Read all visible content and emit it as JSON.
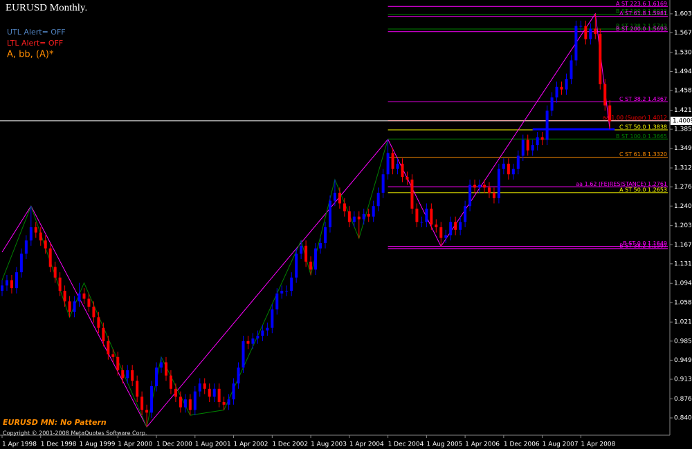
{
  "chart_data": {
    "type": "candlestick",
    "title": "EURUSD Monthly.",
    "notes": [
      {
        "text": "UTL Alert= OFF",
        "color": "#4f81bd"
      },
      {
        "text": "LTL Alert= OFF",
        "color": "#ff2020"
      },
      {
        "text": "A, bb, (A)*",
        "color": "#ff8c00"
      }
    ],
    "status": "EURUSD MN: No Pattern",
    "copyright": "Copyright © 2001-2008 MetaQuotes Software Corp.",
    "up_color": "#0000ff",
    "down_color": "#ff0000",
    "ylim": [
      0.81,
      1.629
    ],
    "yticks": [
      {
        "value": 1.603,
        "label": "1.6030"
      },
      {
        "value": 1.567,
        "label": "1.5670"
      },
      {
        "value": 1.53,
        "label": "1.5300"
      },
      {
        "value": 1.494,
        "label": "1.4940"
      },
      {
        "value": 1.458,
        "label": "1.4580"
      },
      {
        "value": 1.421,
        "label": "1.4210"
      },
      {
        "value": 1.385,
        "label": "1.3850"
      },
      {
        "value": 1.349,
        "label": "1.3490"
      },
      {
        "value": 1.312,
        "label": "1.3120"
      },
      {
        "value": 1.276,
        "label": "1.2760"
      },
      {
        "value": 1.24,
        "label": "1.2400"
      },
      {
        "value": 1.203,
        "label": "1.2030"
      },
      {
        "value": 1.167,
        "label": "1.1670"
      },
      {
        "value": 1.131,
        "label": "1.1310"
      },
      {
        "value": 1.094,
        "label": "1.0940"
      },
      {
        "value": 1.058,
        "label": "1.0580"
      },
      {
        "value": 1.021,
        "label": "1.0210"
      },
      {
        "value": 0.985,
        "label": "0.9850"
      },
      {
        "value": 0.949,
        "label": "0.9490"
      },
      {
        "value": 0.913,
        "label": "0.9130"
      },
      {
        "value": 0.876,
        "label": "0.8760"
      },
      {
        "value": 0.84,
        "label": "0.8400"
      }
    ],
    "categories": [
      "1 Apr 1998",
      null,
      null,
      null,
      null,
      null,
      null,
      null,
      "1 Dec 1998",
      null,
      null,
      null,
      null,
      null,
      null,
      null,
      "1 Aug 1999",
      null,
      null,
      null,
      null,
      null,
      null,
      null,
      "1 Apr 2000",
      null,
      null,
      null,
      null,
      null,
      null,
      null,
      "1 Dec 2000",
      null,
      null,
      null,
      null,
      null,
      null,
      null,
      "1 Aug 2001",
      null,
      null,
      null,
      null,
      null,
      null,
      null,
      "1 Apr 2002",
      null,
      null,
      null,
      null,
      null,
      null,
      null,
      "1 Dec 2002",
      null,
      null,
      null,
      null,
      null,
      null,
      null,
      "1 Aug 2003",
      null,
      null,
      null,
      null,
      null,
      null,
      null,
      "1 Apr 2004",
      null,
      null,
      null,
      null,
      null,
      null,
      null,
      "1 Dec 2004",
      null,
      null,
      null,
      null,
      null,
      null,
      null,
      "1 Aug 2005",
      null,
      null,
      null,
      null,
      null,
      null,
      null,
      "1 Apr 2006",
      null,
      null,
      null,
      null,
      null,
      null,
      null,
      "1 Dec 2006",
      null,
      null,
      null,
      null,
      null,
      null,
      null,
      "1 Aug 2007",
      null,
      null,
      null,
      null,
      null,
      null,
      null,
      "1 Apr 2008",
      null,
      null,
      null,
      null,
      null,
      null
    ],
    "open": [
      1.08,
      1.09,
      1.1,
      1.085,
      1.115,
      1.15,
      1.175,
      1.2,
      1.19,
      1.175,
      1.16,
      1.125,
      1.105,
      1.08,
      1.06,
      1.04,
      1.06,
      1.075,
      1.065,
      1.05,
      1.03,
      1.01,
      0.985,
      0.96,
      0.955,
      0.93,
      0.915,
      0.93,
      0.91,
      0.88,
      0.855,
      0.85,
      0.9,
      0.935,
      0.945,
      0.92,
      0.895,
      0.88,
      0.86,
      0.875,
      0.855,
      0.89,
      0.905,
      0.895,
      0.88,
      0.895,
      0.87,
      0.865,
      0.875,
      0.905,
      0.935,
      0.985,
      0.98,
      0.99,
      0.995,
      1.005,
      1.01,
      1.045,
      1.075,
      1.08,
      1.08,
      1.105,
      1.15,
      1.165,
      1.135,
      1.12,
      1.16,
      1.17,
      1.2,
      1.25,
      1.265,
      1.245,
      1.23,
      1.21,
      1.22,
      1.215,
      1.225,
      1.22,
      1.24,
      1.265,
      1.3,
      1.34,
      1.31,
      1.32,
      1.295,
      1.29,
      1.235,
      1.21,
      1.21,
      1.235,
      1.205,
      1.2,
      1.18,
      1.185,
      1.21,
      1.195,
      1.21,
      1.24,
      1.28,
      1.275,
      1.28,
      1.275,
      1.265,
      1.255,
      1.31,
      1.32,
      1.3,
      1.31,
      1.335,
      1.365,
      1.345,
      1.355,
      1.37,
      1.365,
      1.42,
      1.445,
      1.465,
      1.46,
      1.48,
      1.515,
      1.58,
      1.58,
      1.555,
      1.575,
      1.565,
      1.47,
      1.43
    ],
    "high": [
      1.1,
      1.11,
      1.11,
      1.125,
      1.16,
      1.185,
      1.24,
      1.21,
      1.2,
      1.185,
      1.17,
      1.135,
      1.115,
      1.09,
      1.07,
      1.07,
      1.095,
      1.085,
      1.075,
      1.06,
      1.04,
      1.02,
      0.995,
      0.97,
      0.965,
      0.94,
      0.94,
      0.94,
      0.92,
      0.89,
      0.865,
      0.91,
      0.945,
      0.955,
      0.955,
      0.93,
      0.905,
      0.89,
      0.885,
      0.885,
      0.9,
      0.915,
      0.915,
      0.905,
      0.905,
      0.905,
      0.88,
      0.885,
      0.915,
      0.945,
      0.995,
      0.995,
      1.0,
      1.005,
      1.015,
      1.02,
      1.055,
      1.085,
      1.09,
      1.09,
      1.115,
      1.16,
      1.175,
      1.175,
      1.145,
      1.17,
      1.18,
      1.21,
      1.26,
      1.29,
      1.275,
      1.255,
      1.24,
      1.23,
      1.23,
      1.235,
      1.235,
      1.25,
      1.275,
      1.31,
      1.366,
      1.35,
      1.33,
      1.33,
      1.305,
      1.3,
      1.245,
      1.22,
      1.245,
      1.245,
      1.215,
      1.21,
      1.195,
      1.22,
      1.22,
      1.22,
      1.25,
      1.29,
      1.29,
      1.29,
      1.29,
      1.285,
      1.275,
      1.32,
      1.33,
      1.33,
      1.32,
      1.345,
      1.375,
      1.375,
      1.365,
      1.38,
      1.38,
      1.43,
      1.455,
      1.475,
      1.475,
      1.49,
      1.525,
      1.59,
      1.59,
      1.59,
      1.585,
      1.603,
      1.575,
      1.48,
      1.44
    ],
    "low": [
      1.07,
      1.08,
      1.075,
      1.075,
      1.105,
      1.14,
      1.165,
      1.18,
      1.165,
      1.15,
      1.115,
      1.095,
      1.07,
      1.05,
      1.03,
      1.03,
      1.05,
      1.055,
      1.04,
      1.02,
      1.0,
      0.975,
      0.95,
      0.945,
      0.92,
      0.905,
      0.905,
      0.9,
      0.87,
      0.845,
      0.823,
      0.84,
      0.89,
      0.925,
      0.91,
      0.885,
      0.87,
      0.85,
      0.85,
      0.845,
      0.845,
      0.88,
      0.885,
      0.87,
      0.87,
      0.86,
      0.855,
      0.855,
      0.865,
      0.895,
      0.925,
      0.97,
      0.97,
      0.98,
      0.985,
      0.995,
      1.0,
      1.035,
      1.065,
      1.07,
      1.07,
      1.095,
      1.14,
      1.125,
      1.11,
      1.11,
      1.15,
      1.16,
      1.19,
      1.24,
      1.235,
      1.22,
      1.2,
      1.2,
      1.179,
      1.205,
      1.21,
      1.21,
      1.23,
      1.255,
      1.29,
      1.3,
      1.3,
      1.285,
      1.28,
      1.225,
      1.2,
      1.2,
      1.2,
      1.195,
      1.19,
      1.164,
      1.17,
      1.175,
      1.185,
      1.185,
      1.2,
      1.23,
      1.265,
      1.265,
      1.265,
      1.255,
      1.245,
      1.245,
      1.3,
      1.29,
      1.29,
      1.3,
      1.325,
      1.335,
      1.335,
      1.345,
      1.355,
      1.355,
      1.41,
      1.435,
      1.45,
      1.45,
      1.47,
      1.505,
      1.57,
      1.545,
      1.545,
      1.555,
      1.46,
      1.42,
      1.385
    ],
    "close": [
      1.09,
      1.1,
      1.085,
      1.115,
      1.15,
      1.175,
      1.2,
      1.19,
      1.175,
      1.16,
      1.125,
      1.105,
      1.08,
      1.06,
      1.04,
      1.06,
      1.075,
      1.065,
      1.05,
      1.03,
      1.01,
      0.985,
      0.96,
      0.955,
      0.93,
      0.915,
      0.93,
      0.91,
      0.88,
      0.855,
      0.85,
      0.9,
      0.935,
      0.945,
      0.92,
      0.895,
      0.88,
      0.86,
      0.875,
      0.855,
      0.89,
      0.905,
      0.895,
      0.88,
      0.895,
      0.87,
      0.865,
      0.875,
      0.905,
      0.935,
      0.985,
      0.98,
      0.99,
      0.995,
      1.005,
      1.01,
      1.045,
      1.075,
      1.08,
      1.08,
      1.105,
      1.15,
      1.165,
      1.135,
      1.12,
      1.16,
      1.17,
      1.2,
      1.25,
      1.265,
      1.245,
      1.23,
      1.21,
      1.22,
      1.215,
      1.225,
      1.22,
      1.24,
      1.265,
      1.3,
      1.34,
      1.31,
      1.32,
      1.295,
      1.29,
      1.235,
      1.21,
      1.21,
      1.235,
      1.205,
      1.2,
      1.18,
      1.185,
      1.21,
      1.195,
      1.21,
      1.24,
      1.28,
      1.275,
      1.28,
      1.275,
      1.265,
      1.255,
      1.31,
      1.32,
      1.3,
      1.31,
      1.335,
      1.365,
      1.345,
      1.355,
      1.37,
      1.365,
      1.42,
      1.445,
      1.465,
      1.46,
      1.48,
      1.515,
      1.58,
      1.58,
      1.555,
      1.575,
      1.565,
      1.47,
      1.43,
      1.4
    ],
    "zigzag": [
      {
        "color": "#ff00ff",
        "x": [
          0,
          6,
          30,
          80,
          91,
          123,
          126
        ],
        "values": [
          1.153,
          1.24,
          0.823,
          1.366,
          1.164,
          1.603,
          1.385
        ]
      },
      {
        "color": "#008000",
        "x": [
          0,
          6,
          14,
          17,
          30,
          33,
          39,
          46,
          62,
          64,
          69,
          74,
          80
        ],
        "values": [
          1.1,
          1.24,
          1.03,
          1.095,
          0.823,
          0.955,
          0.845,
          0.855,
          1.175,
          1.11,
          1.29,
          1.179,
          1.366
        ]
      }
    ],
    "levels": [
      {
        "value": 1.6169,
        "label": "A ST 223.6 1.6169",
        "color": "#ff00ff"
      },
      {
        "value": 1.6023,
        "label": "B ST 100.0 1.6023",
        "color": "#008000"
      },
      {
        "value": 1.5981,
        "label": "A ST 61.8 1.5981",
        "color": "#ff00ff"
      },
      {
        "value": 1.5743,
        "label": "B ST 138.2 1.5743",
        "color": "#008000"
      },
      {
        "value": 1.5693,
        "label": "B ST 200.0 1.5693",
        "color": "#ff00ff"
      },
      {
        "value": 1.4367,
        "label": "C ST 38.2 1.4367",
        "color": "#ff00ff"
      },
      {
        "value": 1.4012,
        "label": "aa 1.00 (Suppr) 1.4012",
        "color": "#ff0000"
      },
      {
        "value": 1.3838,
        "label": "C ST 50.0 1.3838",
        "color": "#ffff00"
      },
      {
        "value": 1.3665,
        "label": "B ST 100.0 1.3665",
        "color": "#008000"
      },
      {
        "value": 1.332,
        "label": "C ST 61.8 1.3320",
        "color": "#ff8c00"
      },
      {
        "value": 1.2761,
        "label": "aa 1.62 (FE)RESISTANCE) 1.2761",
        "color": "#ff00ff"
      },
      {
        "value": 1.2653,
        "label": "A ST 50.0 1.2653",
        "color": "#ffff00"
      },
      {
        "value": 1.164,
        "label": "B ST 0.0 1.1640",
        "color": "#ff00ff"
      },
      {
        "value": 1.1597,
        "label": "B ST 38.2 1.1597",
        "color": "#ff00ff"
      }
    ],
    "support": {
      "value": 1.385,
      "color": "#0000ff"
    },
    "last_price": {
      "value": 1.4009,
      "label": "1.4009"
    }
  }
}
